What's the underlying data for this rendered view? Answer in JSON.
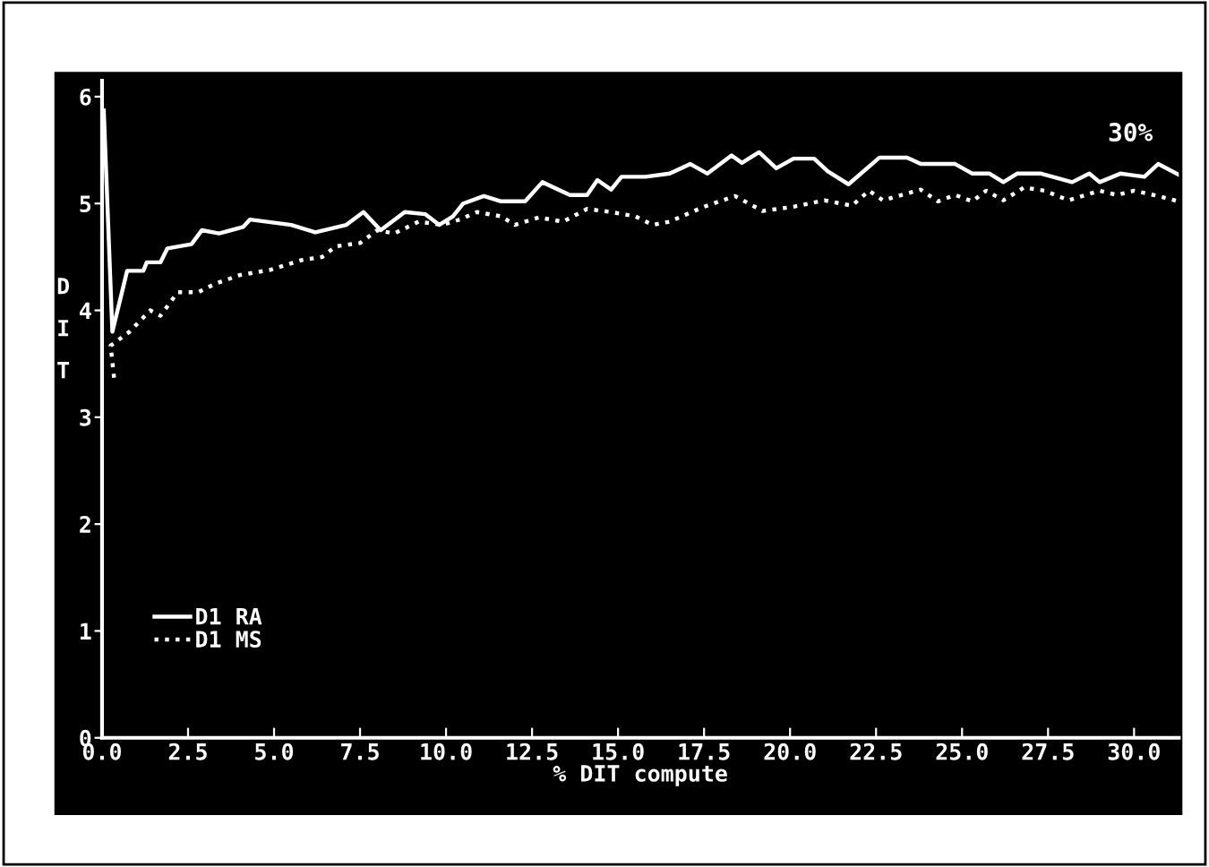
{
  "chart_data": {
    "type": "line",
    "xlabel": "% DIT compute",
    "ylabel": "DIT",
    "xlim": [
      0,
      31.3
    ],
    "ylim": [
      0,
      6.15
    ],
    "xticks": [
      {
        "value": 0,
        "label": "0.0"
      },
      {
        "value": 2.5,
        "label": "2.5"
      },
      {
        "value": 5,
        "label": "5.0"
      },
      {
        "value": 7.5,
        "label": "7.5"
      },
      {
        "value": 10,
        "label": "10.0"
      },
      {
        "value": 12.5,
        "label": "12.5"
      },
      {
        "value": 15,
        "label": "15.0"
      },
      {
        "value": 17.5,
        "label": "17.5"
      },
      {
        "value": 20,
        "label": "20.0"
      },
      {
        "value": 22.5,
        "label": "22.5"
      },
      {
        "value": 25,
        "label": "25.0"
      },
      {
        "value": 27.5,
        "label": "27.5"
      },
      {
        "value": 30,
        "label": "30.0"
      }
    ],
    "yticks": [
      0,
      1,
      2,
      3,
      4,
      5,
      6
    ],
    "grid": false,
    "legend": "bottom left",
    "marker": "none",
    "annotations": [
      "30%"
    ],
    "series": [
      {
        "name": "D1 RA",
        "color": "#ffffff",
        "line_style": "solid",
        "x": [
          0.05,
          0.3,
          0.73,
          1.2,
          1.3,
          1.7,
          1.9,
          2.6,
          2.9,
          3.4,
          4.1,
          4.3,
          5.5,
          6.2,
          7.1,
          7.6,
          8.1,
          8.8,
          9.4,
          9.8,
          10.2,
          10.5,
          11.1,
          11.6,
          12.3,
          12.8,
          13.6,
          14.1,
          14.4,
          14.8,
          15.1,
          15.8,
          16.5,
          17.1,
          17.6,
          18.3,
          18.6,
          19.1,
          19.6,
          20.1,
          20.7,
          21.1,
          21.7,
          22.6,
          23.4,
          23.8,
          24.8,
          25.3,
          25.8,
          26.2,
          26.6,
          27.3,
          28.2,
          28.7,
          29.0,
          29.6,
          30.3,
          30.7,
          31.3
        ],
        "values": [
          5.87,
          3.8,
          4.37,
          4.37,
          4.45,
          4.45,
          4.58,
          4.62,
          4.75,
          4.72,
          4.78,
          4.85,
          4.8,
          4.73,
          4.8,
          4.92,
          4.75,
          4.92,
          4.9,
          4.8,
          4.88,
          5.0,
          5.07,
          5.02,
          5.02,
          5.2,
          5.08,
          5.08,
          5.22,
          5.13,
          5.25,
          5.25,
          5.28,
          5.37,
          5.28,
          5.45,
          5.38,
          5.48,
          5.33,
          5.42,
          5.42,
          5.3,
          5.18,
          5.43,
          5.43,
          5.37,
          5.37,
          5.28,
          5.28,
          5.2,
          5.28,
          5.28,
          5.2,
          5.28,
          5.2,
          5.28,
          5.25,
          5.37,
          5.27
        ]
      },
      {
        "name": "D1 MS",
        "color": "#ffffff",
        "line_style": "dotted",
        "x": [
          0.35,
          0.25,
          0.8,
          1.4,
          1.7,
          2.2,
          2.8,
          3.3,
          4.0,
          4.9,
          5.8,
          6.4,
          6.8,
          7.5,
          8.0,
          8.5,
          9.2,
          9.9,
          10.4,
          10.9,
          11.6,
          12.0,
          12.7,
          13.4,
          14.1,
          14.8,
          15.5,
          16.0,
          16.5,
          17.5,
          18.4,
          19.2,
          20.1,
          21.0,
          21.8,
          22.3,
          22.7,
          23.8,
          24.3,
          24.8,
          25.3,
          25.7,
          26.2,
          26.8,
          27.4,
          28.1,
          29.0,
          29.5,
          30.0,
          30.7,
          31.3
        ],
        "values": [
          3.37,
          3.67,
          3.8,
          4.0,
          3.95,
          4.17,
          4.17,
          4.25,
          4.33,
          4.38,
          4.47,
          4.5,
          4.6,
          4.63,
          4.75,
          4.72,
          4.83,
          4.8,
          4.85,
          4.92,
          4.88,
          4.8,
          4.87,
          4.83,
          4.95,
          4.92,
          4.88,
          4.8,
          4.83,
          4.97,
          5.07,
          4.93,
          4.97,
          5.03,
          4.98,
          5.12,
          5.03,
          5.13,
          5.02,
          5.08,
          5.02,
          5.12,
          5.03,
          5.15,
          5.12,
          5.03,
          5.12,
          5.08,
          5.12,
          5.07,
          5.02
        ]
      }
    ]
  }
}
